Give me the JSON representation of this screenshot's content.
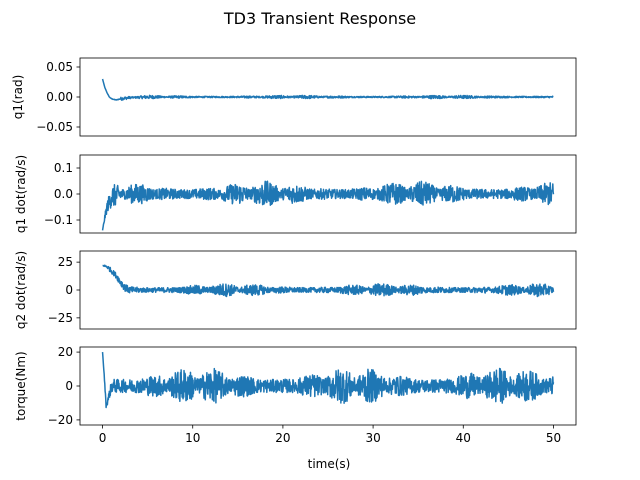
{
  "figure": {
    "title": "TD3 Transient Response",
    "xlabel": "time(s)"
  },
  "chart_data": [
    {
      "type": "line",
      "ylabel": "q1(rad)",
      "xlim": [
        -2.5,
        52.5
      ],
      "ylim": [
        -0.065,
        0.065
      ],
      "xticks": [],
      "yticks": [
        -0.05,
        0.0,
        0.05
      ],
      "ytick_labels": [
        "−0.05",
        "0.00",
        "0.05"
      ],
      "grid": false,
      "series": [
        {
          "color": "#1f77b4",
          "x": [
            0,
            0.25,
            0.5,
            0.75,
            1.0,
            1.5,
            2.0,
            3.0,
            5.0,
            10.0,
            15.0,
            20.0,
            25.0,
            30.0,
            35.0,
            40.0,
            45.0,
            50.0
          ],
          "y": [
            0.03,
            0.016,
            0.007,
            0.0,
            -0.003,
            -0.005,
            -0.003,
            -0.001,
            0.0,
            0.0,
            0.0,
            0.0,
            0.0,
            0.0,
            0.0,
            0.0,
            0.0,
            0.0
          ],
          "noise_amplitude": 0.003
        }
      ]
    },
    {
      "type": "line",
      "ylabel": "q1 dot(rad/s)",
      "xlim": [
        -2.5,
        52.5
      ],
      "ylim": [
        -0.15,
        0.15
      ],
      "xticks": [],
      "yticks": [
        -0.1,
        0.0,
        0.1
      ],
      "ytick_labels": [
        "−0.1",
        "0.0",
        "0.1"
      ],
      "grid": false,
      "series": [
        {
          "color": "#1f77b4",
          "x": [
            0,
            0.25,
            0.5,
            1.0,
            2.0,
            3.0,
            5.0,
            10.0,
            20.0,
            30.0,
            40.0,
            50.0
          ],
          "y": [
            -0.14,
            -0.09,
            -0.05,
            -0.01,
            0.0,
            0.0,
            0.0,
            0.0,
            0.0,
            0.0,
            0.0,
            0.0
          ],
          "noise_amplitude": 0.05
        }
      ]
    },
    {
      "type": "line",
      "ylabel": "q2 dot(rad/s)",
      "xlim": [
        -2.5,
        52.5
      ],
      "ylim": [
        -35,
        35
      ],
      "xticks": [],
      "yticks": [
        -25,
        0,
        25
      ],
      "ytick_labels": [
        "−25",
        "0",
        "25"
      ],
      "grid": false,
      "series": [
        {
          "color": "#1f77b4",
          "x": [
            0,
            0.5,
            1.0,
            1.5,
            2.0,
            2.5,
            3.0,
            4.0,
            5.0,
            10.0,
            20.0,
            30.0,
            40.0,
            50.0
          ],
          "y": [
            22,
            21,
            17,
            13,
            7,
            2,
            0,
            0,
            0,
            0,
            0,
            0,
            0,
            0
          ],
          "noise_amplitude": 6
        }
      ]
    },
    {
      "type": "line",
      "ylabel": "torque(Nm)",
      "xlim": [
        -2.5,
        52.5
      ],
      "ylim": [
        -23,
        23
      ],
      "xticks": [
        0,
        10,
        20,
        30,
        40,
        50
      ],
      "xtick_labels": [
        "0",
        "10",
        "20",
        "30",
        "40",
        "50"
      ],
      "yticks": [
        -20,
        0,
        20
      ],
      "ytick_labels": [
        "−20",
        "0",
        "20"
      ],
      "grid": false,
      "series": [
        {
          "color": "#1f77b4",
          "x": [
            0,
            0.2,
            0.4,
            1.0,
            2.0,
            5.0,
            10.0,
            20.0,
            30.0,
            40.0,
            50.0
          ],
          "y": [
            20,
            5,
            -12,
            0,
            0,
            0,
            0,
            0,
            0,
            0,
            0
          ],
          "noise_amplitude": 11
        }
      ]
    }
  ]
}
